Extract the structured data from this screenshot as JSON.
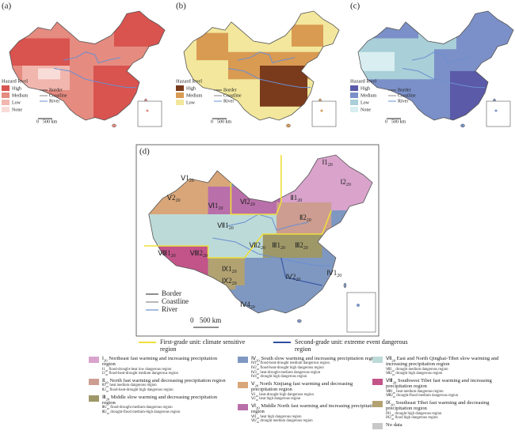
{
  "panels": [
    {
      "label": "(a)",
      "legend_title": "Hazard level",
      "levels": [
        {
          "label": "High",
          "color": "#d9534f"
        },
        {
          "label": "Medium",
          "color": "#e58b80"
        },
        {
          "label": "Low",
          "color": "#f1b6ae"
        },
        {
          "label": "None",
          "color": "#f8dcd8"
        }
      ],
      "lines": [
        "Border",
        "Coastline",
        "River"
      ],
      "scale": [
        "0",
        "500 km"
      ]
    },
    {
      "label": "(b)",
      "legend_title": "Hazard level",
      "levels": [
        {
          "label": "High",
          "color": "#7a3a1c"
        },
        {
          "label": "Medium",
          "color": "#d99a52"
        },
        {
          "label": "Low",
          "color": "#f2e79c"
        }
      ],
      "lines": [
        "Border",
        "Coastline",
        "River"
      ],
      "scale": [
        "0",
        "500 km"
      ]
    },
    {
      "label": "(c)",
      "legend_title": "Hazard level",
      "levels": [
        {
          "label": "High",
          "color": "#5b5aa8"
        },
        {
          "label": "Medium",
          "color": "#7b90c8"
        },
        {
          "label": "Low",
          "color": "#a9cfd8"
        },
        {
          "label": "None",
          "color": "#d8eef0"
        }
      ],
      "lines": [
        "Border",
        "Coastline",
        "River"
      ],
      "scale": [
        "0",
        "500 km"
      ]
    }
  ],
  "map_d": {
    "label": "(d)",
    "region_labels": [
      {
        "code": "Ⅰ1",
        "sub": "20"
      },
      {
        "code": "Ⅰ2",
        "sub": "20"
      },
      {
        "code": "Ⅱ1",
        "sub": "20"
      },
      {
        "code": "Ⅱ2",
        "sub": "20"
      },
      {
        "code": "Ⅲ1",
        "sub": "20"
      },
      {
        "code": "Ⅲ2",
        "sub": "20"
      },
      {
        "code": "Ⅳ1",
        "sub": "20"
      },
      {
        "code": "Ⅳ2",
        "sub": "20"
      },
      {
        "code": "Ⅳ4",
        "sub": "20"
      },
      {
        "code": "Ⅴ1",
        "sub": "20"
      },
      {
        "code": "Ⅴ2",
        "sub": "20"
      },
      {
        "code": "Ⅵ1",
        "sub": "20"
      },
      {
        "code": "Ⅵ2",
        "sub": "20"
      },
      {
        "code": "Ⅶ1",
        "sub": "20"
      },
      {
        "code": "Ⅶ2",
        "sub": "20"
      },
      {
        "code": "Ⅷ1",
        "sub": "20"
      },
      {
        "code": "Ⅷ2",
        "sub": "20"
      },
      {
        "code": "Ⅸ1",
        "sub": "20"
      },
      {
        "code": "Ⅸ2",
        "sub": "20"
      }
    ],
    "lines": [
      "Border",
      "Coastline",
      "River"
    ],
    "scale": [
      "0",
      "500 km"
    ]
  },
  "units": [
    {
      "text": "First-grade unit: climate sensitive region",
      "color": "#eee03a"
    },
    {
      "text": "Second-grade unit: extreme event dangerous region",
      "color": "#2f4f9f"
    }
  ],
  "regions": [
    {
      "code": "Ⅰ",
      "sub": "20",
      "name": "Northeast fast warming and increasing precipitation region",
      "color": "#d9a3cc",
      "subregions": [
        {
          "code": "Ⅰ1",
          "sub": "20",
          "text": "flood-drought-heat low dangerous region"
        },
        {
          "code": "Ⅰ2",
          "sub": "20",
          "text": "flood-heat-drought medium dangerous region"
        }
      ]
    },
    {
      "code": "Ⅱ",
      "sub": "20",
      "name": "North fast warming and decreasing precipitation region",
      "color": "#cc9d90",
      "subregions": [
        {
          "code": "Ⅱ1",
          "sub": "20",
          "text": "heat medium dangerous region"
        },
        {
          "code": "Ⅱ2",
          "sub": "20",
          "text": "flood-heat-drought high dangerous region"
        }
      ]
    },
    {
      "code": "Ⅲ",
      "sub": "20",
      "name": "Middle slow warming and decreasing precipitation region",
      "color": "#9e9868",
      "subregions": [
        {
          "code": "Ⅲ1",
          "sub": "20",
          "text": "flood-drought medium-dangerous region"
        },
        {
          "code": "Ⅲ2",
          "sub": "20",
          "text": "drought-flood medium-high dangerous region"
        }
      ]
    },
    {
      "code": "Ⅳ",
      "sub": "20",
      "name": "South slow warming and increasing precipitation region",
      "color": "#7f98c2",
      "subregions": [
        {
          "code": "Ⅳ1",
          "sub": "20",
          "text": "flood-heat-drought medium dangerous region"
        },
        {
          "code": "Ⅳ2",
          "sub": "20",
          "text": "flood-heat-drought high dangerous region"
        },
        {
          "code": "Ⅳ3",
          "sub": "20",
          "text": "heat-drought medium dangerous region"
        },
        {
          "code": "Ⅳ4",
          "sub": "20",
          "text": "drought high dangerous region"
        }
      ]
    },
    {
      "code": "Ⅴ",
      "sub": "20",
      "name": "North Xinjiang fast warming and decreasing precipitation region",
      "color": "#d9a679",
      "subregions": [
        {
          "code": "Ⅴ1",
          "sub": "20",
          "text": "heat-drought high dangerous region"
        },
        {
          "code": "Ⅴ2",
          "sub": "20",
          "text": "heat high dangerous region"
        }
      ]
    },
    {
      "code": "Ⅵ",
      "sub": "20",
      "name": "Middle North fast warming and increasing precipitation region",
      "color": "#b96fa9",
      "subregions": [
        {
          "code": "Ⅵ1",
          "sub": "20",
          "text": "heat high dangerous region"
        },
        {
          "code": "Ⅵ2",
          "sub": "20",
          "text": "drought medium dangerous region"
        }
      ]
    },
    {
      "code": "Ⅶ",
      "sub": "20",
      "name": "East and North Qinghai-Tibet slow warming and increasing precipitation region",
      "color": "#bcdad8",
      "subregions": [
        {
          "code": "Ⅶ1",
          "sub": "20",
          "text": "drought medium dangerous region"
        },
        {
          "code": "Ⅶ2",
          "sub": "20",
          "text": "drought high dangerous region"
        }
      ]
    },
    {
      "code": "Ⅷ",
      "sub": "20",
      "name": "Southwest Tibet fast warming and increasing precipitation region",
      "color": "#c2548a",
      "subregions": [
        {
          "code": "Ⅷ1",
          "sub": "20",
          "text": "heat medium dangerous region"
        },
        {
          "code": "Ⅷ2",
          "sub": "20",
          "text": "drought-flood medium dangerous region"
        }
      ]
    },
    {
      "code": "Ⅸ",
      "sub": "20",
      "name": "Southeast Tibet fast warming and decreasing precipitation region",
      "color": "#b2a272",
      "subregions": [
        {
          "code": "Ⅸ1",
          "sub": "20",
          "text": "drought high dangerous region"
        },
        {
          "code": "Ⅸ2",
          "sub": "20",
          "text": "flood high dangerous region"
        }
      ]
    },
    {
      "name": "No data",
      "color": "#c8c8c8"
    }
  ]
}
